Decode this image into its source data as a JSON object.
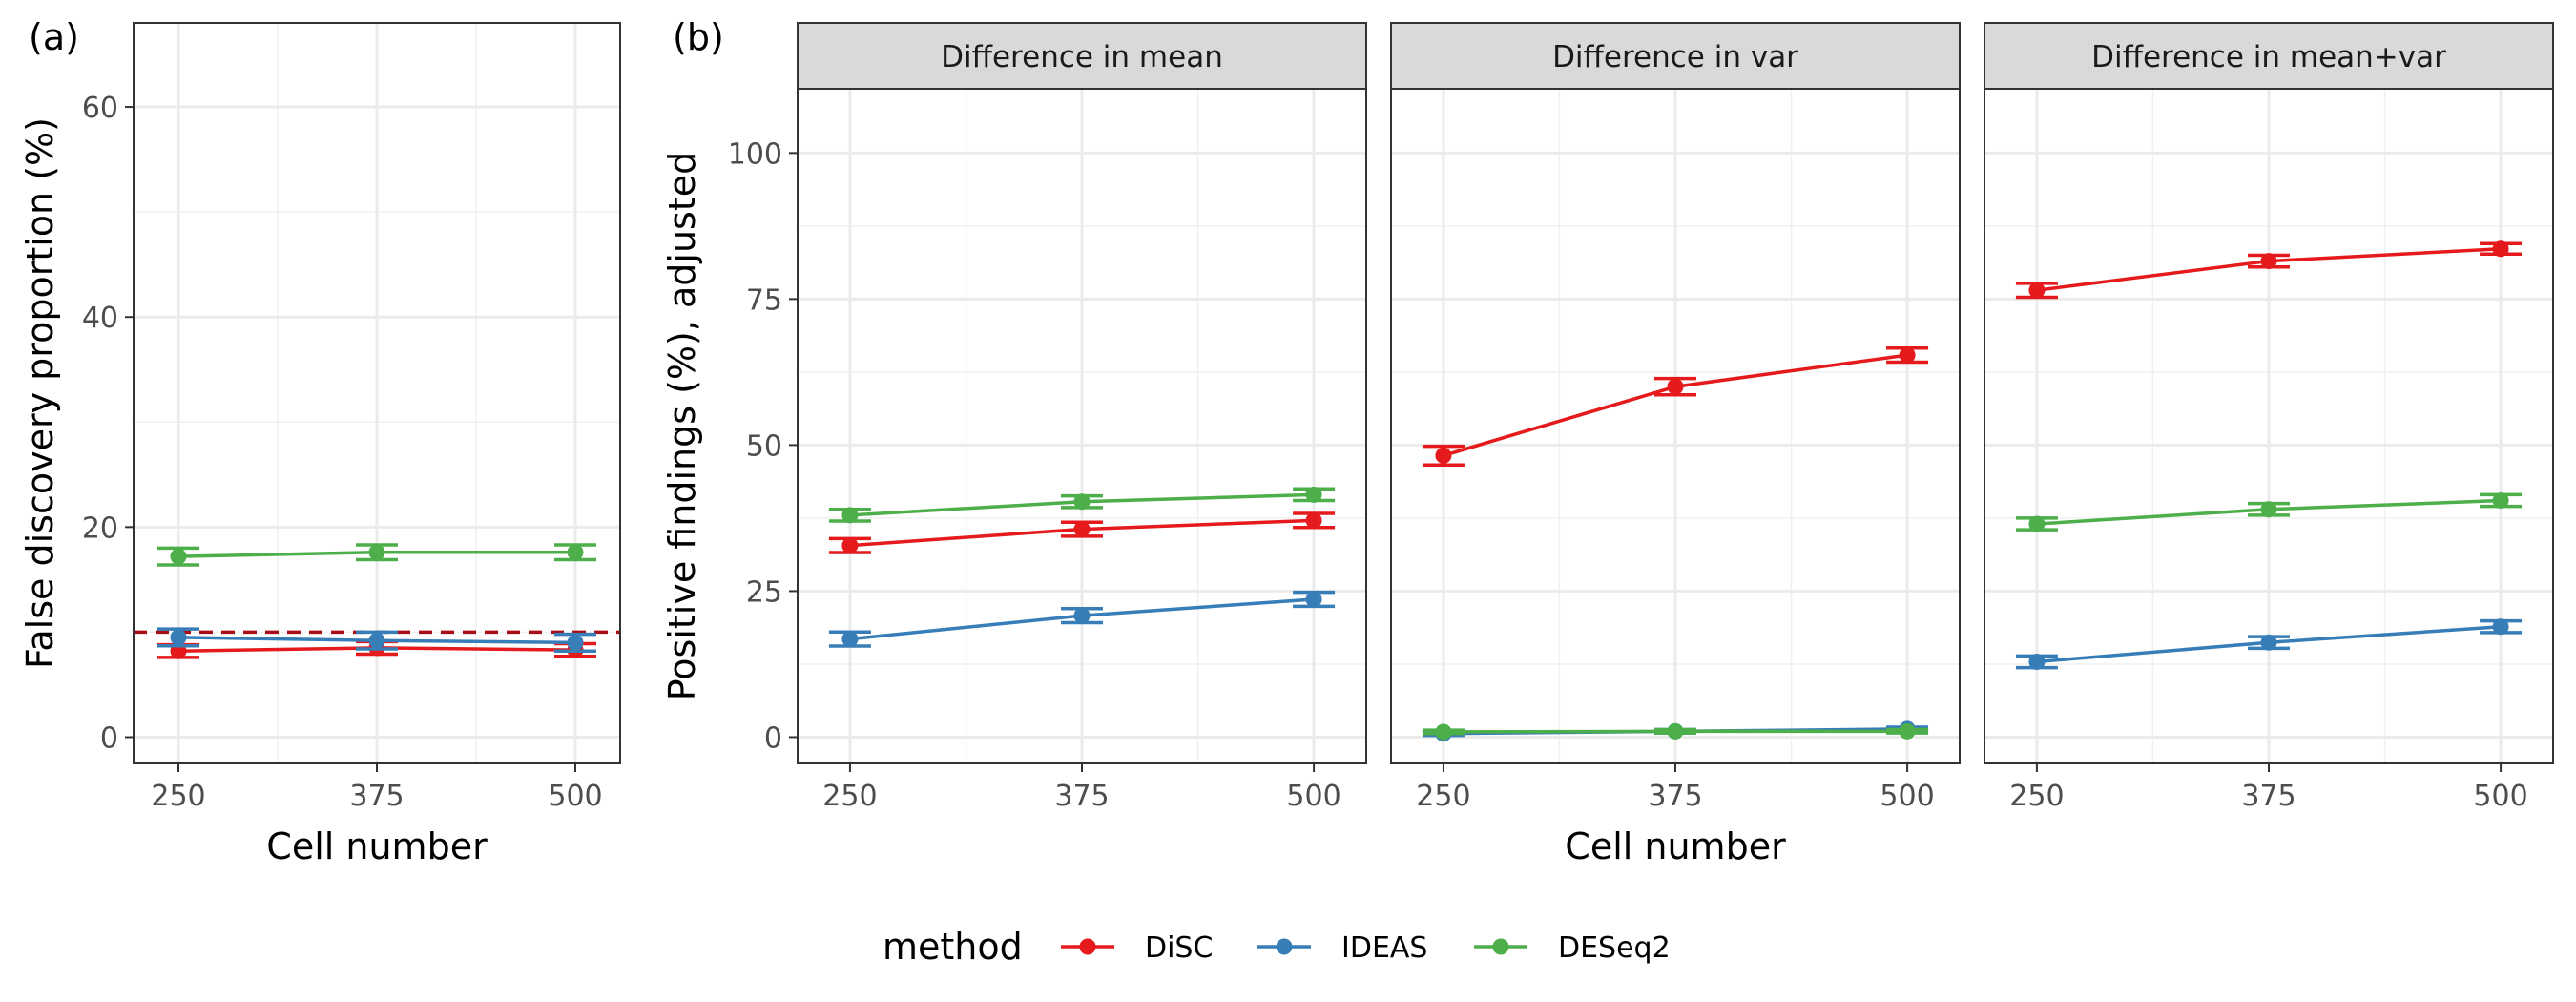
{
  "legend": {
    "title": "method",
    "items": [
      {
        "label": "DiSC",
        "color": "#e41a1c"
      },
      {
        "label": "IDEAS",
        "color": "#377eb8"
      },
      {
        "label": "DESeq2",
        "color": "#4daf4a"
      }
    ]
  },
  "chart_data": [
    {
      "type": "line",
      "panel_label": "(a)",
      "xlabel": "Cell number",
      "ylabel": "False discovery proportion (%)",
      "x": [
        250,
        375,
        500
      ],
      "xticks": [
        "250",
        "375",
        "500"
      ],
      "yticks": [
        0,
        20,
        40,
        60
      ],
      "ylim": [
        -2.5,
        68
      ],
      "reference_line": {
        "y": 10,
        "style": "dashed",
        "color": "#a50f15"
      },
      "grid": true,
      "series": [
        {
          "name": "DiSC",
          "values": [
            8.2,
            8.5,
            8.3
          ],
          "errors": [
            0.6,
            0.6,
            0.6
          ]
        },
        {
          "name": "IDEAS",
          "values": [
            9.5,
            9.2,
            9.0
          ],
          "errors": [
            0.8,
            0.8,
            0.8
          ]
        },
        {
          "name": "DESeq2",
          "values": [
            17.2,
            17.6,
            17.6
          ],
          "errors": [
            0.8,
            0.7,
            0.7
          ]
        }
      ]
    },
    {
      "type": "line",
      "panel_label": "(b)",
      "xlabel": "Cell number",
      "ylabel": "Positive findings (%), adjusted",
      "x": [
        250,
        375,
        500
      ],
      "xticks": [
        "250",
        "375",
        "500"
      ],
      "yticks": [
        0,
        25,
        50,
        75,
        100
      ],
      "ylim": [
        -4.5,
        111
      ],
      "grid": true,
      "facets": [
        {
          "title": "Difference in mean",
          "series": [
            {
              "name": "DiSC",
              "values": [
                32.8,
                35.6,
                37.1
              ],
              "errors": [
                1.2,
                1.2,
                1.2
              ]
            },
            {
              "name": "IDEAS",
              "values": [
                16.8,
                20.8,
                23.6
              ],
              "errors": [
                1.2,
                1.2,
                1.2
              ]
            },
            {
              "name": "DESeq2",
              "values": [
                38.0,
                40.3,
                41.5
              ],
              "errors": [
                1.0,
                1.0,
                1.0
              ]
            }
          ]
        },
        {
          "title": "Difference in var",
          "series": [
            {
              "name": "DiSC",
              "values": [
                48.2,
                60.0,
                65.4
              ],
              "errors": [
                1.6,
                1.4,
                1.2
              ]
            },
            {
              "name": "IDEAS",
              "values": [
                0.6,
                1.0,
                1.4
              ],
              "errors": [
                0.3,
                0.3,
                0.3
              ]
            },
            {
              "name": "DESeq2",
              "values": [
                0.9,
                1.0,
                1.0
              ],
              "errors": [
                0.3,
                0.3,
                0.3
              ]
            }
          ]
        },
        {
          "title": "Difference in mean+var",
          "series": [
            {
              "name": "DiSC",
              "values": [
                76.5,
                81.5,
                83.6
              ],
              "errors": [
                1.2,
                1.0,
                0.9
              ]
            },
            {
              "name": "IDEAS",
              "values": [
                12.9,
                16.2,
                18.9
              ],
              "errors": [
                1.0,
                1.0,
                1.0
              ]
            },
            {
              "name": "DESeq2",
              "values": [
                36.5,
                39.0,
                40.5
              ],
              "errors": [
                1.0,
                1.0,
                1.0
              ]
            }
          ]
        }
      ]
    }
  ]
}
